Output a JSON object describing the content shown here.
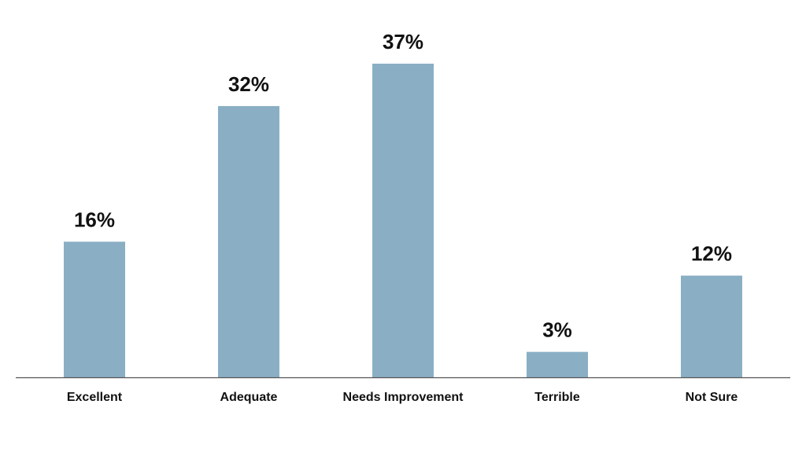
{
  "chart_data": {
    "type": "bar",
    "categories": [
      "Excellent",
      "Adequate",
      "Needs Improvement",
      "Terrible",
      "Not Sure"
    ],
    "values": [
      16,
      32,
      37,
      3,
      12
    ],
    "value_labels": [
      "16%",
      "32%",
      "37%",
      "3%",
      "12%"
    ],
    "color": "#8aafc4"
  }
}
